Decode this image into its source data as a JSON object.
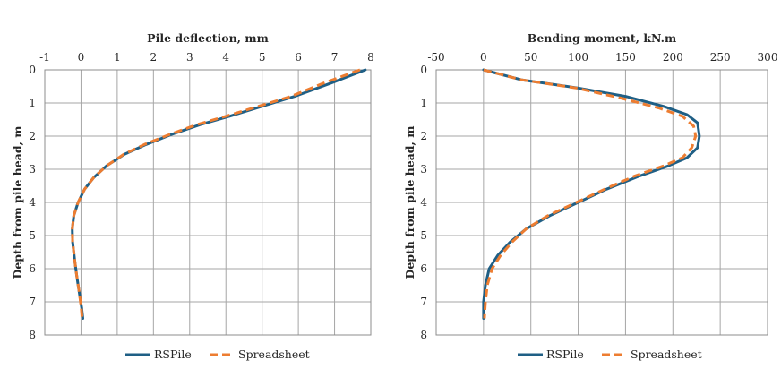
{
  "colors": {
    "rspile": "#1f5f85",
    "spreadsheet": "#ed7d31",
    "grid": "#a6a6a6",
    "frame": "#8c8c8c"
  },
  "chart_data": [
    {
      "type": "line",
      "title": "Pile deflection, mm",
      "xlabel": "",
      "ylabel": "Depth from pile head, m",
      "xlim": [
        -1,
        8
      ],
      "ylim": [
        0,
        8
      ],
      "y_inverted": true,
      "x_axis_position": "top",
      "xticks": [
        -1,
        0,
        1,
        2,
        3,
        4,
        5,
        6,
        7,
        8
      ],
      "yticks": [
        0,
        1,
        2,
        3,
        4,
        5,
        6,
        7,
        8
      ],
      "grid": true,
      "legend": "bottom",
      "series": [
        {
          "name": "RSPile",
          "style": "solid",
          "points": [
            [
              7.85,
              0
            ],
            [
              6.9,
              0.4
            ],
            [
              5.9,
              0.8
            ],
            [
              5.0,
              1.1
            ],
            [
              4.1,
              1.4
            ],
            [
              3.3,
              1.65
            ],
            [
              2.5,
              1.95
            ],
            [
              1.8,
              2.25
            ],
            [
              1.2,
              2.55
            ],
            [
              0.7,
              2.9
            ],
            [
              0.35,
              3.25
            ],
            [
              0.1,
              3.6
            ],
            [
              -0.08,
              4.0
            ],
            [
              -0.2,
              4.4
            ],
            [
              -0.24,
              4.8
            ],
            [
              -0.23,
              5.2
            ],
            [
              -0.18,
              5.7
            ],
            [
              -0.12,
              6.2
            ],
            [
              -0.05,
              6.7
            ],
            [
              0.02,
              7.2
            ],
            [
              0.05,
              7.5
            ]
          ]
        },
        {
          "name": "Spreadsheet",
          "style": "dashed",
          "points": [
            [
              7.7,
              0
            ],
            [
              6.7,
              0.4
            ],
            [
              5.8,
              0.8
            ],
            [
              4.9,
              1.1
            ],
            [
              4.0,
              1.4
            ],
            [
              3.2,
              1.65
            ],
            [
              2.45,
              1.95
            ],
            [
              1.75,
              2.25
            ],
            [
              1.18,
              2.55
            ],
            [
              0.7,
              2.9
            ],
            [
              0.35,
              3.25
            ],
            [
              0.1,
              3.6
            ],
            [
              -0.08,
              4.0
            ],
            [
              -0.2,
              4.4
            ],
            [
              -0.24,
              4.8
            ],
            [
              -0.23,
              5.2
            ],
            [
              -0.18,
              5.7
            ],
            [
              -0.12,
              6.2
            ],
            [
              -0.05,
              6.7
            ],
            [
              0.01,
              7.2
            ],
            [
              0.03,
              7.5
            ]
          ]
        }
      ]
    },
    {
      "type": "line",
      "title": "Bending moment, kN.m",
      "xlabel": "",
      "ylabel": "Depth from pile head, m",
      "xlim": [
        -50,
        300
      ],
      "ylim": [
        0,
        8
      ],
      "y_inverted": true,
      "x_axis_position": "top",
      "xticks": [
        -50,
        0,
        50,
        100,
        150,
        200,
        250,
        300
      ],
      "yticks": [
        0,
        1,
        2,
        3,
        4,
        5,
        6,
        7,
        8
      ],
      "grid": true,
      "legend": "bottom",
      "series": [
        {
          "name": "RSPile",
          "style": "solid",
          "points": [
            [
              0,
              0
            ],
            [
              40,
              0.3
            ],
            [
              100,
              0.55
            ],
            [
              150,
              0.8
            ],
            [
              190,
              1.1
            ],
            [
              215,
              1.35
            ],
            [
              226,
              1.6
            ],
            [
              228,
              2.0
            ],
            [
              226,
              2.35
            ],
            [
              215,
              2.65
            ],
            [
              195,
              2.9
            ],
            [
              165,
              3.2
            ],
            [
              130,
              3.6
            ],
            [
              100,
              4.0
            ],
            [
              70,
              4.4
            ],
            [
              45,
              4.8
            ],
            [
              28,
              5.2
            ],
            [
              15,
              5.6
            ],
            [
              6,
              6.0
            ],
            [
              2,
              6.5
            ],
            [
              0,
              7.0
            ],
            [
              0,
              7.5
            ]
          ]
        },
        {
          "name": "Spreadsheet",
          "style": "dashed",
          "points": [
            [
              0,
              0
            ],
            [
              40,
              0.3
            ],
            [
              98,
              0.55
            ],
            [
              145,
              0.85
            ],
            [
              185,
              1.15
            ],
            [
              210,
              1.4
            ],
            [
              222,
              1.7
            ],
            [
              224,
              2.0
            ],
            [
              220,
              2.35
            ],
            [
              210,
              2.65
            ],
            [
              190,
              2.9
            ],
            [
              160,
              3.2
            ],
            [
              128,
              3.6
            ],
            [
              98,
              4.0
            ],
            [
              68,
              4.4
            ],
            [
              45,
              4.8
            ],
            [
              30,
              5.2
            ],
            [
              18,
              5.6
            ],
            [
              9,
              6.0
            ],
            [
              4,
              6.5
            ],
            [
              2,
              7.0
            ],
            [
              1,
              7.5
            ]
          ]
        }
      ]
    }
  ]
}
